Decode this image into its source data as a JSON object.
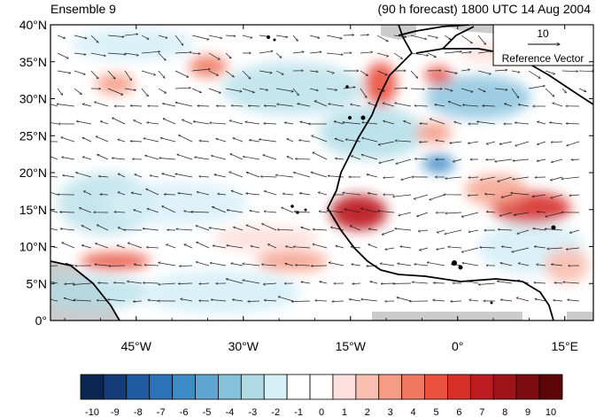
{
  "header": {
    "left_title": "Ensemble 9",
    "right_title": "(90 h forecast) 1800 UTC 14 Aug 2004"
  },
  "map": {
    "lat_labels": [
      "40°N",
      "35°N",
      "30°N",
      "25°N",
      "20°N",
      "15°N",
      "10°N",
      "5°N",
      "0°"
    ],
    "lon_labels": [
      "45°W",
      "30°W",
      "15°W",
      "0°",
      "15°E"
    ],
    "lat_range": [
      0,
      40
    ],
    "lon_range": [
      -57,
      19
    ],
    "land_color": "#cccccc",
    "coast_color": "#000000"
  },
  "reference_vector": {
    "magnitude": "10",
    "label": "Reference Vector"
  },
  "colorbar": {
    "labels": [
      "-10",
      "-9",
      "-8",
      "-7",
      "-6",
      "-5",
      "-4",
      "-3",
      "-2",
      "-1",
      "0",
      "1",
      "2",
      "3",
      "4",
      "5",
      "6",
      "7",
      "8",
      "9",
      "10"
    ],
    "colors": [
      "#0b2650",
      "#173a78",
      "#1f5ba0",
      "#2b73b8",
      "#3d8cc6",
      "#5ea6d1",
      "#86c1dc",
      "#aedbe6",
      "#d7eff7",
      "#ffffff",
      "#ffffff",
      "#fde0dd",
      "#f9bfb0",
      "#f59c86",
      "#f07860",
      "#e9503d",
      "#d7302b",
      "#bd1c23",
      "#9f1218",
      "#7d0c12",
      "#5d060a"
    ]
  }
}
